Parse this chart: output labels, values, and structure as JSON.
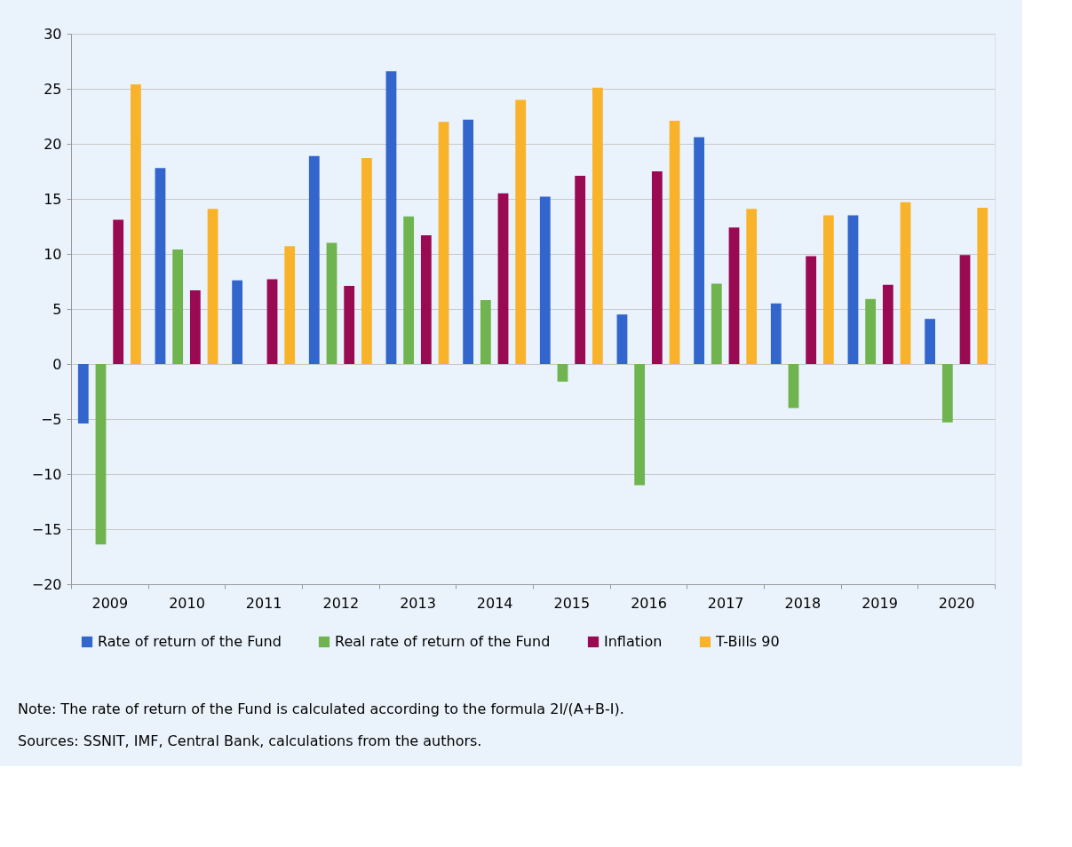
{
  "chart_data": {
    "type": "bar",
    "categories": [
      "2009",
      "2010",
      "2011",
      "2012",
      "2013",
      "2014",
      "2015",
      "2016",
      "2017",
      "2018",
      "2019",
      "2020"
    ],
    "series": [
      {
        "name": "Rate of return of the Fund",
        "color": "#3366cc",
        "values": [
          -5.4,
          17.8,
          7.6,
          18.9,
          26.6,
          22.2,
          15.2,
          4.5,
          20.6,
          5.5,
          13.5,
          4.1
        ]
      },
      {
        "name": "Real rate of return of the Fund",
        "color": "#70b450",
        "values": [
          -16.4,
          10.4,
          null,
          11.0,
          13.4,
          5.8,
          -1.6,
          -11.0,
          7.3,
          -4.0,
          5.9,
          -5.3
        ]
      },
      {
        "name": "Inflation",
        "color": "#990a53",
        "values": [
          13.1,
          6.7,
          7.7,
          7.1,
          11.7,
          15.5,
          17.1,
          17.5,
          12.4,
          9.8,
          7.2,
          9.9
        ]
      },
      {
        "name": "T-Bills 90",
        "color": "#f9b32a",
        "values": [
          25.4,
          14.1,
          10.7,
          18.7,
          22.0,
          24.0,
          25.1,
          22.1,
          14.1,
          13.5,
          14.7,
          14.2
        ]
      }
    ],
    "ylim": [
      -20,
      30
    ],
    "yticks": [
      -20,
      -15,
      -10,
      -5,
      0,
      5,
      10,
      15,
      20,
      25,
      30
    ],
    "grid": "y",
    "legend": "bottom",
    "annotations": [
      "Note: The rate of return of the Fund is calculated according to the formula 2I/(A+B-I).",
      "Sources: SSNIT, IMF, Central Bank, calculations from the authors."
    ]
  }
}
